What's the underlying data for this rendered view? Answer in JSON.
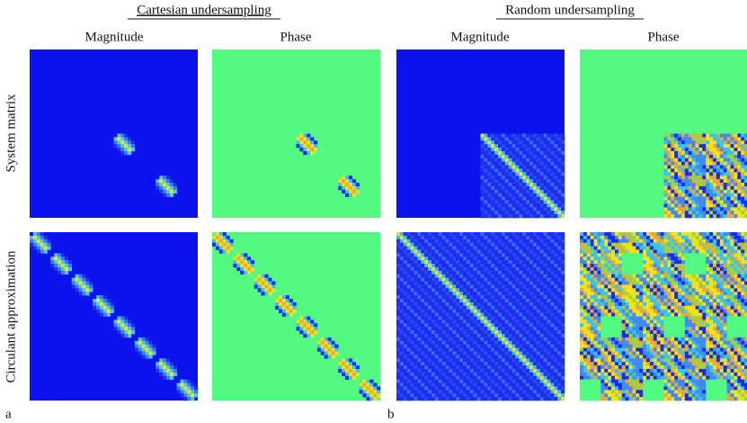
{
  "headers": [
    {
      "title": "Cartesian undersampling",
      "columns": [
        "Magnitude",
        "Phase"
      ]
    },
    {
      "title": "Random undersampling",
      "columns": [
        "Magnitude",
        "Phase"
      ]
    }
  ],
  "rows": [
    "System matrix",
    "Circulant approximation"
  ],
  "panel_labels": [
    "a",
    "b"
  ]
}
